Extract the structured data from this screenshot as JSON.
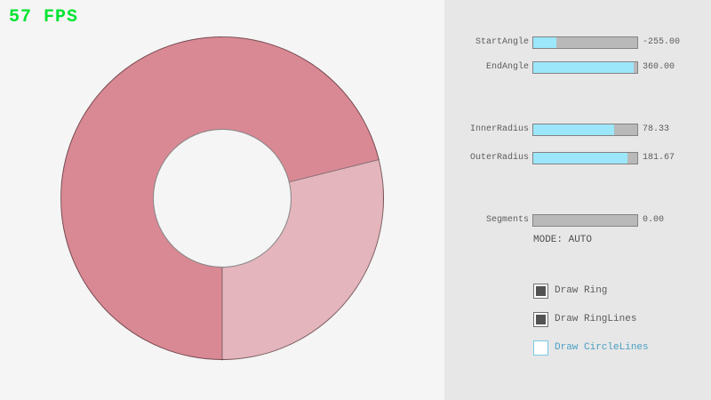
{
  "fps_label": "57 FPS",
  "colors": {
    "fps_green": "#00e430",
    "background": "#f5f5f5",
    "panel_gray": "#e7e7e7",
    "slider_accent_cyan": "#9de7fa",
    "ring_dark_pink": "#d98994",
    "ring_light_pink": "#e4b5bc",
    "focused_blue": "#4aa0c4"
  },
  "ring": {
    "start_angle": -255.0,
    "end_angle": 360.0,
    "inner_radius": 78.33,
    "outer_radius": 181.67,
    "segments": 0.0
  },
  "sliders": [
    {
      "label": "StartAngle",
      "value": "-255.00",
      "fill_pct": 22
    },
    {
      "label": "EndAngle",
      "value": "360.00",
      "fill_pct": 97
    },
    {
      "label": "InnerRadius",
      "value": "78.33",
      "fill_pct": 78
    },
    {
      "label": "OuterRadius",
      "value": "181.67",
      "fill_pct": 91
    },
    {
      "label": "Segments",
      "value": "0.00",
      "fill_pct": 0
    }
  ],
  "mode_text": "MODE: AUTO",
  "checkboxes": [
    {
      "label": "Draw Ring",
      "checked": true,
      "focused": false
    },
    {
      "label": "Draw RingLines",
      "checked": true,
      "focused": false
    },
    {
      "label": "Draw CircleLines",
      "checked": false,
      "focused": true
    }
  ]
}
